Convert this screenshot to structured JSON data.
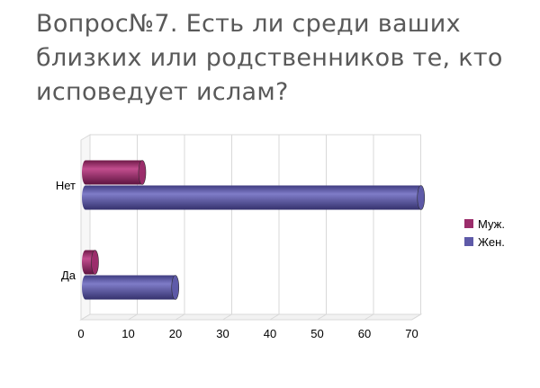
{
  "slide": {
    "title": "Вопрос№7.  Есть ли среди ваших близких или родственников те, кто исповедует ислам?"
  },
  "colors": {
    "series_male": "#9b2d6b",
    "series_female": "#5e5aa8"
  },
  "chart_data": {
    "type": "bar",
    "orientation": "horizontal",
    "style": "3d-cylinder",
    "categories": [
      "Нет",
      "Да"
    ],
    "series": [
      {
        "name": "Муж.",
        "values": [
          12,
          2
        ]
      },
      {
        "name": "Жен.",
        "values": [
          71,
          19
        ]
      }
    ],
    "xlim": [
      0,
      70
    ],
    "x_ticks": [
      0,
      10,
      20,
      30,
      40,
      50,
      60,
      70
    ],
    "grid": true,
    "legend": "right"
  }
}
